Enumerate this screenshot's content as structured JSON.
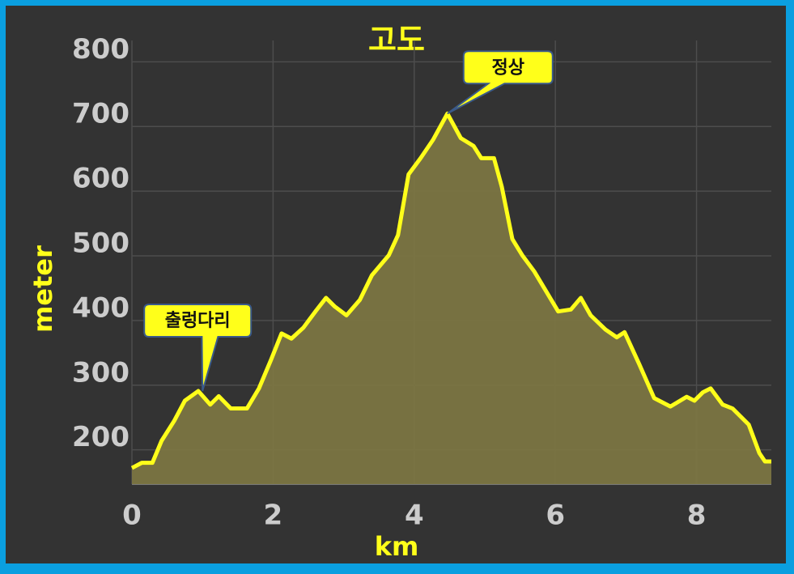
{
  "chart_data": {
    "type": "area",
    "title": "고도",
    "x_label": "km",
    "y_label": "meter",
    "x": [
      0,
      0.14,
      0.29,
      0.42,
      0.6,
      0.75,
      0.94,
      1.11,
      1.23,
      1.4,
      1.63,
      1.8,
      1.97,
      2.12,
      2.26,
      2.43,
      2.6,
      2.75,
      2.87,
      3.04,
      3.23,
      3.4,
      3.64,
      3.77,
      3.92,
      4.09,
      4.27,
      4.47,
      4.66,
      4.84,
      4.95,
      5.13,
      5.24,
      5.39,
      5.53,
      5.7,
      5.87,
      6.04,
      6.22,
      6.36,
      6.5,
      6.71,
      6.87,
      6.98,
      7.19,
      7.4,
      7.63,
      7.86,
      7.97,
      8.09,
      8.2,
      8.37,
      8.51,
      8.74,
      8.89,
      8.97,
      9.06
    ],
    "series": [
      {
        "color": "#ffff1a",
        "fill": "#7b7542",
        "values": [
          172,
          180,
          180,
          214,
          245,
          276,
          291,
          270,
          283,
          264,
          264,
          295,
          339,
          380,
          372,
          389,
          414,
          435,
          422,
          408,
          432,
          470,
          501,
          532,
          626,
          651,
          680,
          720,
          682,
          670,
          651,
          651,
          607,
          526,
          501,
          476,
          445,
          414,
          417,
          435,
          408,
          386,
          374,
          382,
          332,
          280,
          267,
          282,
          276,
          289,
          295,
          270,
          264,
          239,
          195,
          182,
          182
        ]
      }
    ],
    "xlim": [
      0,
      9.06
    ],
    "ylim": [
      147,
      833
    ],
    "xticks": [
      0,
      2,
      4,
      6,
      8
    ],
    "yticks": [
      200,
      300,
      400,
      500,
      600,
      700,
      800
    ],
    "grid": true,
    "annotations": [
      {
        "text": "정상",
        "x": 4.47,
        "y": 720
      },
      {
        "text": "출렁다리",
        "x": 1.0,
        "y": 291
      }
    ]
  }
}
